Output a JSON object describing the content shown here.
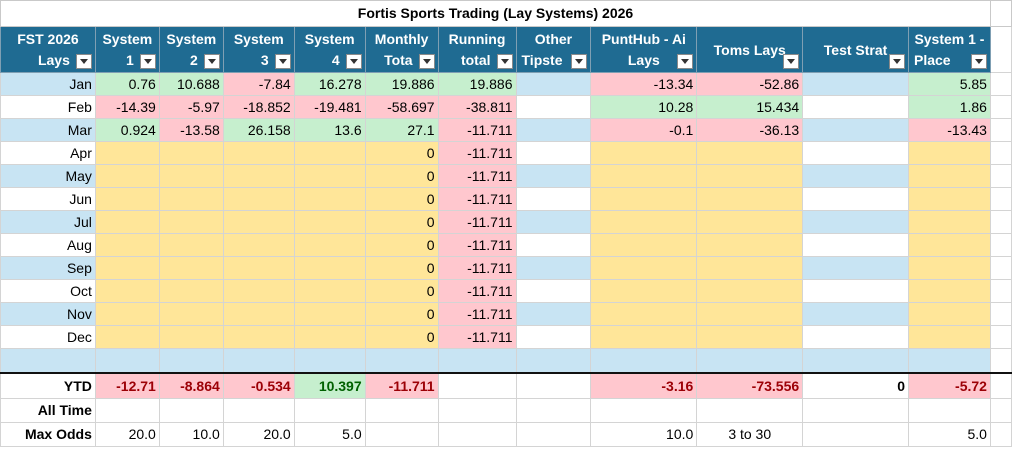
{
  "sheet": {
    "title": "Fortis Sports Trading (Lay Systems) 2026"
  },
  "headers": [
    {
      "l1": "FST 2026",
      "l2": "Lays"
    },
    {
      "l1": "System",
      "l2": "1"
    },
    {
      "l1": "System",
      "l2": "2"
    },
    {
      "l1": "System",
      "l2": "3"
    },
    {
      "l1": "System",
      "l2": "4"
    },
    {
      "l1": "Monthly",
      "l2": "Tota"
    },
    {
      "l1": "Running",
      "l2": "total"
    },
    {
      "l1": "Other",
      "l2": "Tipste"
    },
    {
      "l1": "PuntHub - Ai",
      "l2": "Lays"
    },
    {
      "l1": "Toms Lays",
      "l2": ""
    },
    {
      "l1": "Test Strat",
      "l2": ""
    },
    {
      "l1": "System 1 -",
      "l2": "Place"
    }
  ],
  "rows": [
    {
      "month": "Jan",
      "cells": [
        "0.76",
        "10.688",
        "-7.84",
        "16.278",
        "19.886",
        "19.886",
        "",
        "-13.34",
        "-52.86",
        "",
        "5.85"
      ]
    },
    {
      "month": "Feb",
      "cells": [
        "-14.39",
        "-5.97",
        "-18.852",
        "-19.481",
        "-58.697",
        "-38.811",
        "",
        "10.28",
        "15.434",
        "",
        "1.86"
      ]
    },
    {
      "month": "Mar",
      "cells": [
        "0.924",
        "-13.58",
        "26.158",
        "13.6",
        "27.1",
        "-11.711",
        "",
        "-0.1",
        "-36.13",
        "",
        "-13.43"
      ]
    },
    {
      "month": "Apr",
      "cells": [
        "",
        "",
        "",
        "",
        "0",
        "-11.711",
        "",
        "",
        "",
        "",
        ""
      ]
    },
    {
      "month": "May",
      "cells": [
        "",
        "",
        "",
        "",
        "0",
        "-11.711",
        "",
        "",
        "",
        "",
        ""
      ]
    },
    {
      "month": "Jun",
      "cells": [
        "",
        "",
        "",
        "",
        "0",
        "-11.711",
        "",
        "",
        "",
        "",
        ""
      ]
    },
    {
      "month": "Jul",
      "cells": [
        "",
        "",
        "",
        "",
        "0",
        "-11.711",
        "",
        "",
        "",
        "",
        ""
      ]
    },
    {
      "month": "Aug",
      "cells": [
        "",
        "",
        "",
        "",
        "0",
        "-11.711",
        "",
        "",
        "",
        "",
        ""
      ]
    },
    {
      "month": "Sep",
      "cells": [
        "",
        "",
        "",
        "",
        "0",
        "-11.711",
        "",
        "",
        "",
        "",
        ""
      ]
    },
    {
      "month": "Oct",
      "cells": [
        "",
        "",
        "",
        "",
        "0",
        "-11.711",
        "",
        "",
        "",
        "",
        ""
      ]
    },
    {
      "month": "Nov",
      "cells": [
        "",
        "",
        "",
        "",
        "0",
        "-11.711",
        "",
        "",
        "",
        "",
        ""
      ]
    },
    {
      "month": "Dec",
      "cells": [
        "",
        "",
        "",
        "",
        "0",
        "-11.711",
        "",
        "",
        "",
        "",
        ""
      ]
    }
  ],
  "ytd": {
    "label": "YTD",
    "cells": [
      "-12.71",
      "-8.864",
      "-0.534",
      "10.397",
      "-11.711",
      "",
      "",
      "-3.16",
      "-73.556",
      "0",
      "-5.72"
    ]
  },
  "alltime": {
    "label": "All Time",
    "cells": [
      "",
      "",
      "",
      "",
      "",
      "",
      "",
      "",
      "",
      "",
      ""
    ]
  },
  "maxodds": {
    "label": "Max Odds",
    "cells": [
      "20.0",
      "10.0",
      "20.0",
      "5.0",
      "",
      "",
      "",
      "10.0",
      "3 to 30",
      "",
      "5.0"
    ]
  },
  "colors": {
    "header": "#1f6b92",
    "band": "#c8e4f3",
    "positive": "#c6efce",
    "negative": "#ffc7ce",
    "empty": "#ffe699"
  }
}
